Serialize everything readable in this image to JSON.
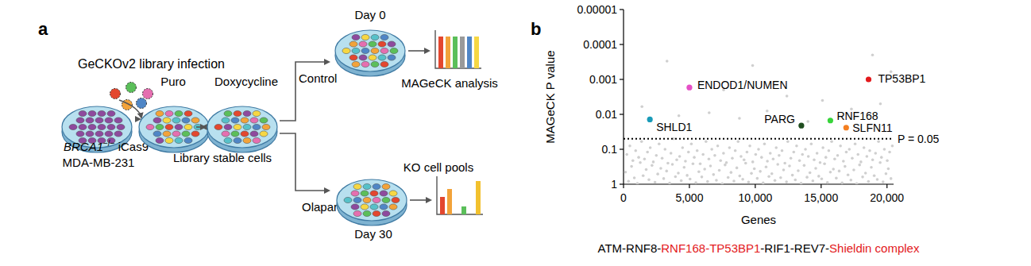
{
  "panel_labels": [
    "a",
    "b"
  ],
  "diagram": {
    "title": "GeCKOv2 library infection",
    "start": {
      "gene": "BRCA1",
      "genotype": "−/−",
      "rest": " iCas9",
      "line2": "MDA-MB-231"
    },
    "steps": [
      "Puro",
      "Doxycycline"
    ],
    "stable_label": "Library stable cells",
    "branches": [
      {
        "treatment": "Control",
        "day": "Day 0",
        "result": "MAGeCK analysis"
      },
      {
        "treatment": "Olaparib",
        "day": "Day 30",
        "result": "KO cell pools"
      }
    ]
  },
  "chart_data": {
    "type": "scatter",
    "xlabel": "Genes",
    "ylabel": "MAGeCK P value",
    "log": "y",
    "grid": false,
    "xlim": [
      0,
      20500
    ],
    "xticks": [
      0,
      {
        "value": 5000,
        "label": "5,000"
      },
      {
        "value": 10000,
        "label": "10,000"
      },
      {
        "value": 15000,
        "label": "15,000"
      },
      {
        "value": 20000,
        "label": "20,000"
      }
    ],
    "ylim": [
      1,
      1e-05
    ],
    "yticks": [
      1,
      0.1,
      0.01,
      0.001,
      0.0001,
      1e-05
    ],
    "threshold": {
      "value": 0.05,
      "label": "P = 0.05"
    },
    "series": [
      {
        "color": "#cfcfcf",
        "marker": "circle",
        "x": [
          150,
          380,
          610,
          820,
          1050,
          1270,
          1490,
          1720,
          1930,
          2160,
          2390,
          2600,
          2830,
          3050,
          3270,
          3500,
          3710,
          3940,
          4160,
          4380,
          4600,
          4830,
          5050,
          5270,
          5490,
          5720,
          5940,
          6160,
          6380,
          6600,
          6830,
          7050,
          7270,
          7490,
          7710,
          7940,
          8160,
          8380,
          8600,
          8820,
          9050,
          9270,
          9490,
          9710,
          9930,
          10150,
          10380,
          10600,
          10820,
          11040,
          11260,
          11490,
          11710,
          11930,
          12150,
          12370,
          12600,
          12820,
          13040,
          13260,
          13480,
          13710,
          13930,
          14150,
          14370,
          14590,
          14820,
          15040,
          15260,
          15480,
          15700,
          15930,
          16150,
          16370,
          16590,
          16810,
          17040,
          17260,
          17480,
          17700,
          17920,
          18150,
          18370,
          18590,
          18810,
          19030,
          19260,
          19480,
          19700,
          19920,
          20100,
          20300,
          250,
          480,
          710,
          920,
          1150,
          1370,
          1590,
          1820,
          2030,
          2260,
          2490,
          2700,
          2930,
          3150,
          3370,
          3600,
          3810,
          4040,
          4260,
          4480,
          4700,
          4930,
          5150,
          5370,
          5590,
          5820,
          6040,
          6260,
          6480,
          6700,
          6930,
          7150,
          7370,
          7590,
          7810,
          8040,
          8260,
          8480,
          8700,
          8920,
          9150,
          9370,
          9590,
          9810,
          10030,
          10250,
          10480,
          10700,
          10920,
          11140,
          11360,
          11590,
          11810,
          12030,
          12250,
          12470,
          12700,
          12920,
          13140,
          13360,
          13580,
          13810,
          14030,
          14250,
          14470,
          14690,
          14920,
          15140,
          15360,
          15580,
          15800,
          16030,
          16250,
          16470,
          16690,
          16910,
          17140,
          17360,
          17580,
          17800,
          18020,
          18250,
          18470,
          18690,
          18910,
          19130,
          19360,
          19580,
          19800,
          20020,
          20200,
          20400,
          3300,
          9800,
          18900,
          7600,
          12400,
          20300,
          1400,
          10900,
          15100,
          6500,
          19500,
          4200,
          17300,
          8800,
          14000
        ],
        "values": [
          0.45,
          0.82,
          0.31,
          0.66,
          0.95,
          0.24,
          0.57,
          0.38,
          0.74,
          0.29,
          0.88,
          0.51,
          0.35,
          0.69,
          0.42,
          0.93,
          0.27,
          0.61,
          0.48,
          0.79,
          0.33,
          0.56,
          0.71,
          0.26,
          0.9,
          0.44,
          0.62,
          0.37,
          0.84,
          0.3,
          0.53,
          0.77,
          0.4,
          0.97,
          0.28,
          0.64,
          0.46,
          0.81,
          0.34,
          0.58,
          0.72,
          0.25,
          0.87,
          0.49,
          0.36,
          0.68,
          0.43,
          0.92,
          0.32,
          0.6,
          0.5,
          0.78,
          0.27,
          0.65,
          0.39,
          0.86,
          0.3,
          0.55,
          0.75,
          0.41,
          0.94,
          0.29,
          0.63,
          0.47,
          0.8,
          0.35,
          0.59,
          0.7,
          0.26,
          0.89,
          0.45,
          0.37,
          0.67,
          0.42,
          0.91,
          0.31,
          0.54,
          0.76,
          0.39,
          0.96,
          0.28,
          0.62,
          0.48,
          0.83,
          0.33,
          0.57,
          0.73,
          0.24,
          0.86,
          0.5,
          0.36,
          0.69,
          0.14,
          0.08,
          0.21,
          0.11,
          0.17,
          0.06,
          0.19,
          0.12,
          0.09,
          0.23,
          0.15,
          0.07,
          0.18,
          0.1,
          0.25,
          0.13,
          0.05,
          0.2,
          0.16,
          0.09,
          0.22,
          0.12,
          0.07,
          0.17,
          0.11,
          0.26,
          0.14,
          0.06,
          0.19,
          0.1,
          0.15,
          0.08,
          0.21,
          0.13,
          0.24,
          0.09,
          0.18,
          0.11,
          0.06,
          0.16,
          0.2,
          0.12,
          0.08,
          0.23,
          0.14,
          0.1,
          0.17,
          0.07,
          0.22,
          0.13,
          0.19,
          0.09,
          0.15,
          0.11,
          0.25,
          0.06,
          0.18,
          0.12,
          0.08,
          0.21,
          0.14,
          0.1,
          0.16,
          0.07,
          0.2,
          0.13,
          0.24,
          0.09,
          0.17,
          0.11,
          0.06,
          0.19,
          0.15,
          0.08,
          0.22,
          0.12,
          0.1,
          0.18,
          0.07,
          0.14,
          0.23,
          0.09,
          0.16,
          0.11,
          0.2,
          0.13,
          0.06,
          0.17,
          0.1,
          0.21,
          0.12,
          0.08,
          0.0003,
          0.0004,
          0.0002,
          0.002,
          0.003,
          0.0006,
          0.006,
          0.008,
          0.004,
          0.009,
          0.005,
          0.011,
          0.007,
          0.013,
          0.016
        ]
      },
      {
        "marker": "circle",
        "labels": [
          "TP53BP1",
          "ENDOD1/NUMEN",
          "SHLD1",
          "PARG",
          "RNF168",
          "SLFN11"
        ],
        "colors": [
          "#e3191c",
          "#e54fc6",
          "#1a9bb8",
          "#1f4d1f",
          "#37d43a",
          "#f47f20"
        ],
        "x": [
          18600,
          5000,
          2000,
          13500,
          15700,
          16900
        ],
        "values": [
          0.001,
          0.0017,
          0.014,
          0.021,
          0.015,
          0.024
        ]
      }
    ]
  },
  "caption": {
    "segments": [
      {
        "text": "ATM-RNF8-",
        "color": "#000000"
      },
      {
        "text": "RNF168-TP53BP1",
        "color": "#e3191c"
      },
      {
        "text": "-RIF1-REV7-",
        "color": "#000000"
      },
      {
        "text": "Shieldin complex",
        "color": "#e3191c"
      }
    ]
  }
}
